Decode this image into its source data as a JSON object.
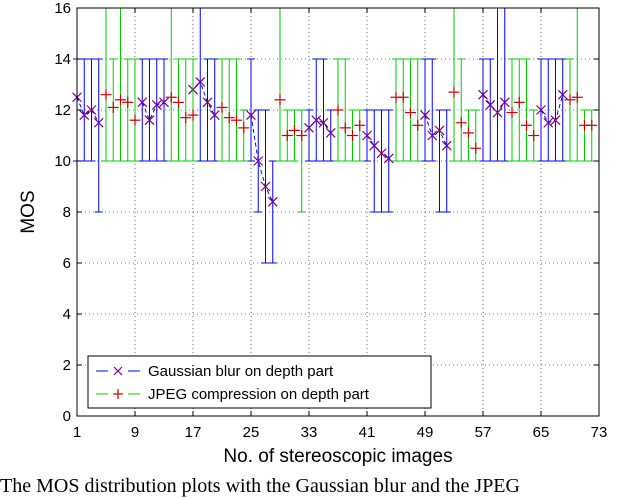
{
  "caption": "The MOS distribution plots with the Gaussian blur and the JPEG",
  "chart_data": {
    "type": "errorbar",
    "xlabel": "No. of stereoscopic images",
    "ylabel": "MOS",
    "xlim": [
      1,
      73
    ],
    "ylim": [
      0,
      16
    ],
    "xticks": [
      "1",
      "9",
      "17",
      "25",
      "33",
      "41",
      "49",
      "57",
      "65",
      "73"
    ],
    "yticks": [
      "0",
      "2",
      "4",
      "6",
      "8",
      "10",
      "12",
      "14",
      "16"
    ],
    "grid": true,
    "legend_position": "bottom-left",
    "series": [
      {
        "name": "Gaussian blur on depth part",
        "color": "#0000ff",
        "marker_color": "#800080",
        "marker": "x",
        "line_style": "dashed",
        "points": [
          {
            "x": 1,
            "y": 12.5,
            "low": 10,
            "high": 14
          },
          {
            "x": 2,
            "y": 11.8,
            "low": 10,
            "high": 14
          },
          {
            "x": 3,
            "y": 12.0,
            "low": 10,
            "high": 14
          },
          {
            "x": 4,
            "y": 11.5,
            "low": 8,
            "high": 14
          },
          {
            "x": 10,
            "y": 12.3,
            "low": 10,
            "high": 14
          },
          {
            "x": 11,
            "y": 11.6,
            "low": 10,
            "high": 14
          },
          {
            "x": 12,
            "y": 12.2,
            "low": 10,
            "high": 14
          },
          {
            "x": 13,
            "y": 12.3,
            "low": 10,
            "high": 14
          },
          {
            "x": 17,
            "y": 12.8,
            "low": 10,
            "high": 14
          },
          {
            "x": 18,
            "y": 13.1,
            "low": 10,
            "high": 16
          },
          {
            "x": 19,
            "y": 12.3,
            "low": 10,
            "high": 14
          },
          {
            "x": 20,
            "y": 11.8,
            "low": 10,
            "high": 14
          },
          {
            "x": 25,
            "y": 11.8,
            "low": 10,
            "high": 14
          },
          {
            "x": 26,
            "y": 10.0,
            "low": 8,
            "high": 12
          },
          {
            "x": 27,
            "y": 9.0,
            "low": 6,
            "high": 12
          },
          {
            "x": 28,
            "y": 8.4,
            "low": 6,
            "high": 10
          },
          {
            "x": 33,
            "y": 11.3,
            "low": 10,
            "high": 12
          },
          {
            "x": 34,
            "y": 11.6,
            "low": 10,
            "high": 14
          },
          {
            "x": 35,
            "y": 11.5,
            "low": 10,
            "high": 14
          },
          {
            "x": 36,
            "y": 11.1,
            "low": 10,
            "high": 12
          },
          {
            "x": 41,
            "y": 11.0,
            "low": 10,
            "high": 12
          },
          {
            "x": 42,
            "y": 10.6,
            "low": 8,
            "high": 12
          },
          {
            "x": 43,
            "y": 10.3,
            "low": 8,
            "high": 12
          },
          {
            "x": 44,
            "y": 10.1,
            "low": 8,
            "high": 12
          },
          {
            "x": 49,
            "y": 11.8,
            "low": 10,
            "high": 14
          },
          {
            "x": 50,
            "y": 11.0,
            "low": 10,
            "high": 14
          },
          {
            "x": 51,
            "y": 11.2,
            "low": 8,
            "high": 12
          },
          {
            "x": 52,
            "y": 10.6,
            "low": 8,
            "high": 12
          },
          {
            "x": 57,
            "y": 12.6,
            "low": 10,
            "high": 14
          },
          {
            "x": 58,
            "y": 12.2,
            "low": 10,
            "high": 14
          },
          {
            "x": 59,
            "y": 11.9,
            "low": 10,
            "high": 16
          },
          {
            "x": 60,
            "y": 12.3,
            "low": 10,
            "high": 16
          },
          {
            "x": 65,
            "y": 12.0,
            "low": 10,
            "high": 14
          },
          {
            "x": 66,
            "y": 11.5,
            "low": 10,
            "high": 14
          },
          {
            "x": 67,
            "y": 11.6,
            "low": 10,
            "high": 14
          },
          {
            "x": 68,
            "y": 12.6,
            "low": 10,
            "high": 14
          }
        ]
      },
      {
        "name": "JPEG compression on depth part",
        "color": "#00cc00",
        "marker_color": "#cc0000",
        "marker": "+",
        "line_style": "none",
        "points": [
          {
            "x": 5,
            "y": 12.6,
            "low": 10,
            "high": 16
          },
          {
            "x": 6,
            "y": 12.1,
            "low": 10,
            "high": 14
          },
          {
            "x": 7,
            "y": 12.4,
            "low": 10,
            "high": 16
          },
          {
            "x": 8,
            "y": 12.3,
            "low": 10,
            "high": 14
          },
          {
            "x": 9,
            "y": 11.6,
            "low": 10,
            "high": 14
          },
          {
            "x": 14,
            "y": 12.5,
            "low": 10,
            "high": 16
          },
          {
            "x": 15,
            "y": 12.3,
            "low": 10,
            "high": 14
          },
          {
            "x": 16,
            "y": 11.7,
            "low": 10,
            "high": 14
          },
          {
            "x": 17,
            "y": 11.8,
            "low": 10,
            "high": 14
          },
          {
            "x": 21,
            "y": 12.1,
            "low": 10,
            "high": 14
          },
          {
            "x": 22,
            "y": 11.7,
            "low": 10,
            "high": 14
          },
          {
            "x": 23,
            "y": 11.6,
            "low": 10,
            "high": 14
          },
          {
            "x": 24,
            "y": 11.3,
            "low": 10,
            "high": 12
          },
          {
            "x": 29,
            "y": 12.4,
            "low": 10,
            "high": 16
          },
          {
            "x": 30,
            "y": 11.0,
            "low": 10,
            "high": 12
          },
          {
            "x": 31,
            "y": 11.2,
            "low": 10,
            "high": 12
          },
          {
            "x": 32,
            "y": 11.0,
            "low": 8,
            "high": 12
          },
          {
            "x": 37,
            "y": 12.0,
            "low": 10,
            "high": 14
          },
          {
            "x": 38,
            "y": 11.3,
            "low": 10,
            "high": 14
          },
          {
            "x": 39,
            "y": 11.0,
            "low": 10,
            "high": 12
          },
          {
            "x": 40,
            "y": 11.4,
            "low": 10,
            "high": 12
          },
          {
            "x": 45,
            "y": 12.5,
            "low": 10,
            "high": 14
          },
          {
            "x": 46,
            "y": 12.5,
            "low": 10,
            "high": 14
          },
          {
            "x": 47,
            "y": 11.9,
            "low": 10,
            "high": 14
          },
          {
            "x": 48,
            "y": 11.4,
            "low": 10,
            "high": 14
          },
          {
            "x": 53,
            "y": 12.7,
            "low": 10,
            "high": 16
          },
          {
            "x": 54,
            "y": 11.5,
            "low": 10,
            "high": 14
          },
          {
            "x": 55,
            "y": 11.1,
            "low": 10,
            "high": 12
          },
          {
            "x": 56,
            "y": 10.5,
            "low": 10,
            "high": 12
          },
          {
            "x": 61,
            "y": 11.9,
            "low": 10,
            "high": 14
          },
          {
            "x": 62,
            "y": 12.3,
            "low": 10,
            "high": 14
          },
          {
            "x": 63,
            "y": 11.4,
            "low": 10,
            "high": 14
          },
          {
            "x": 64,
            "y": 11.0,
            "low": 10,
            "high": 12
          },
          {
            "x": 69,
            "y": 12.4,
            "low": 10,
            "high": 14
          },
          {
            "x": 70,
            "y": 12.5,
            "low": 10,
            "high": 16
          },
          {
            "x": 71,
            "y": 11.4,
            "low": 10,
            "high": 12
          },
          {
            "x": 72,
            "y": 11.4,
            "low": 10,
            "high": 12
          }
        ]
      }
    ]
  }
}
